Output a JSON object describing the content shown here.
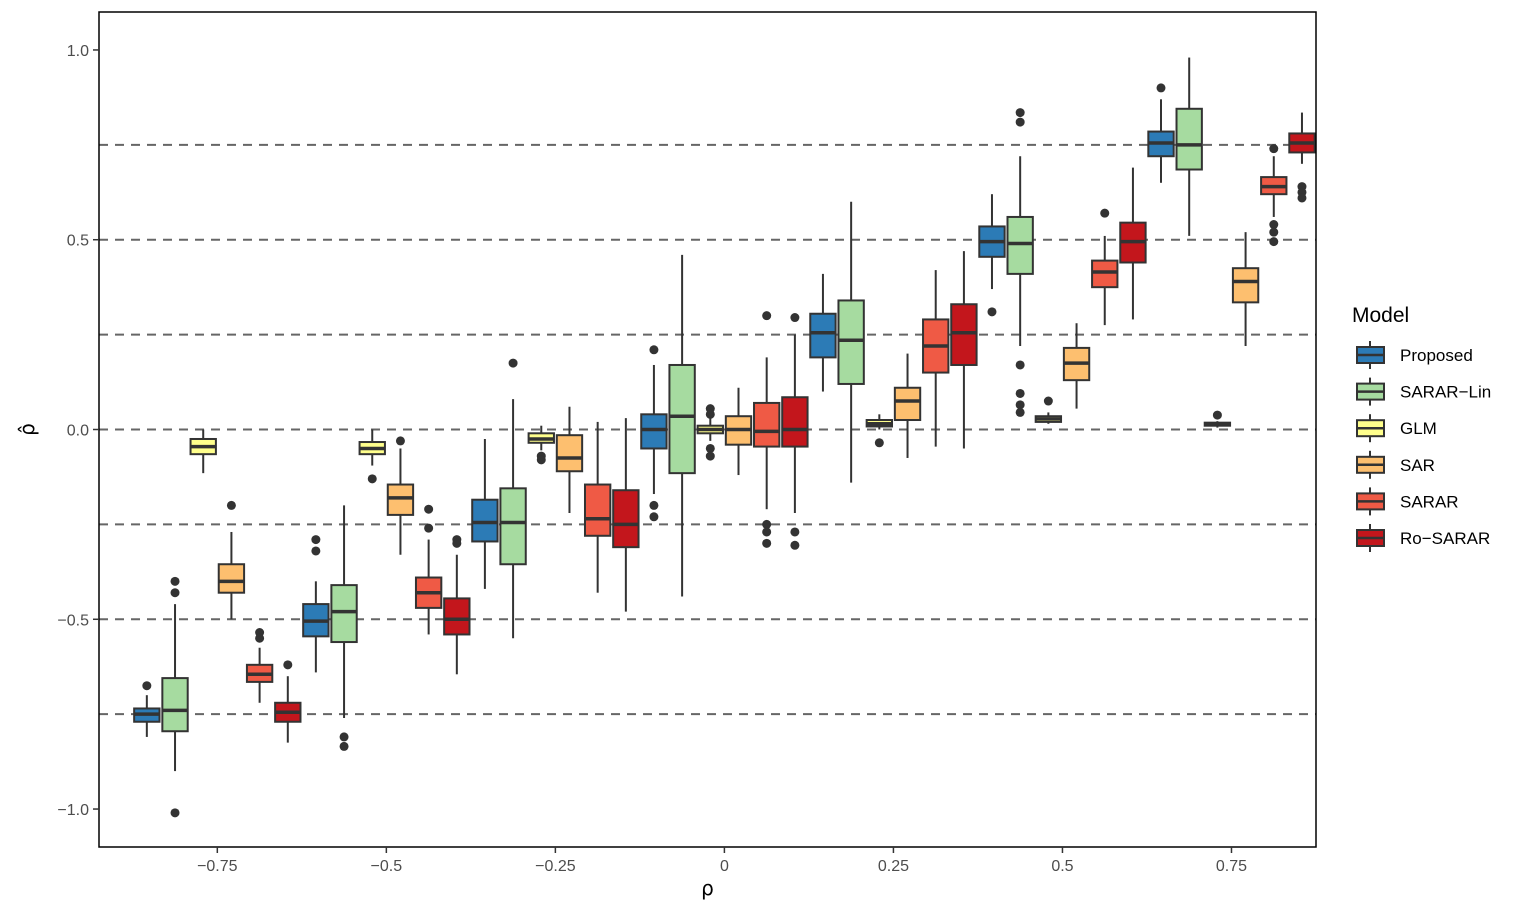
{
  "chart_data": {
    "type": "boxplot",
    "xlabel": "ρ",
    "ylabel": "ρ̂",
    "ylim": [
      -1.1,
      1.1
    ],
    "y_ticks": [
      -1.0,
      -0.5,
      0.0,
      0.5,
      1.0
    ],
    "y_tick_labels": [
      "-1.0",
      "-0.5",
      "0.0",
      "0.5",
      "1.0"
    ],
    "x_ticks": [
      -0.75,
      -0.5,
      -0.25,
      0,
      0.25,
      0.5,
      0.75
    ],
    "x_tick_labels": [
      "-0.75",
      "-0.5",
      "-0.25",
      "0",
      "0.25",
      "0.5",
      "0.75"
    ],
    "reference_lines": [
      -0.75,
      -0.5,
      -0.25,
      0.0,
      0.25,
      0.5,
      0.75
    ],
    "grid": false,
    "legend": {
      "title": "Model",
      "position": "right"
    },
    "series": [
      {
        "name": "Proposed",
        "color": "#2c7bb6",
        "boxes": [
          {
            "x": -0.75,
            "min": -0.81,
            "q1": -0.77,
            "median": -0.75,
            "q3": -0.735,
            "max": -0.7,
            "outliers": [
              -0.675
            ]
          },
          {
            "x": -0.5,
            "min": -0.64,
            "q1": -0.545,
            "median": -0.505,
            "q3": -0.46,
            "max": -0.4,
            "outliers": [
              -0.29,
              -0.32
            ]
          },
          {
            "x": -0.25,
            "min": -0.42,
            "q1": -0.295,
            "median": -0.245,
            "q3": -0.185,
            "max": -0.025,
            "outliers": []
          },
          {
            "x": 0,
            "min": -0.17,
            "q1": -0.05,
            "median": 0.0,
            "q3": 0.04,
            "max": 0.17,
            "outliers": [
              0.21,
              -0.2,
              -0.23
            ]
          },
          {
            "x": 0.25,
            "min": 0.1,
            "q1": 0.19,
            "median": 0.255,
            "q3": 0.305,
            "max": 0.41,
            "outliers": []
          },
          {
            "x": 0.5,
            "min": 0.37,
            "q1": 0.455,
            "median": 0.495,
            "q3": 0.535,
            "max": 0.62,
            "outliers": [
              0.31
            ]
          },
          {
            "x": 0.75,
            "min": 0.65,
            "q1": 0.72,
            "median": 0.755,
            "q3": 0.785,
            "max": 0.87,
            "outliers": [
              0.9
            ]
          }
        ]
      },
      {
        "name": "SARAR−Lin",
        "color": "#a6dba0",
        "boxes": [
          {
            "x": -0.75,
            "min": -0.9,
            "q1": -0.795,
            "median": -0.74,
            "q3": -0.655,
            "max": -0.46,
            "outliers": [
              -0.4,
              -0.43,
              -1.01
            ]
          },
          {
            "x": -0.5,
            "min": -0.76,
            "q1": -0.56,
            "median": -0.48,
            "q3": -0.41,
            "max": -0.2,
            "outliers": [
              -0.81,
              -0.835
            ]
          },
          {
            "x": -0.25,
            "min": -0.55,
            "q1": -0.355,
            "median": -0.245,
            "q3": -0.155,
            "max": 0.08,
            "outliers": [
              0.175
            ]
          },
          {
            "x": 0,
            "min": -0.44,
            "q1": -0.115,
            "median": 0.035,
            "q3": 0.17,
            "max": 0.46,
            "outliers": []
          },
          {
            "x": 0.25,
            "min": -0.14,
            "q1": 0.12,
            "median": 0.235,
            "q3": 0.34,
            "max": 0.6,
            "outliers": []
          },
          {
            "x": 0.5,
            "min": 0.22,
            "q1": 0.41,
            "median": 0.49,
            "q3": 0.56,
            "max": 0.72,
            "outliers": [
              0.835,
              0.81,
              0.17,
              0.095,
              0.065,
              0.045
            ]
          },
          {
            "x": 0.75,
            "min": 0.51,
            "q1": 0.685,
            "median": 0.75,
            "q3": 0.845,
            "max": 0.98,
            "outliers": []
          }
        ]
      },
      {
        "name": "GLM",
        "color": "#ffff8c",
        "boxes": [
          {
            "x": -0.75,
            "min": -0.115,
            "q1": -0.065,
            "median": -0.045,
            "q3": -0.025,
            "max": 0.0,
            "outliers": []
          },
          {
            "x": -0.5,
            "min": -0.095,
            "q1": -0.065,
            "median": -0.05,
            "q3": -0.033,
            "max": 0.0,
            "outliers": [
              -0.13
            ]
          },
          {
            "x": -0.25,
            "min": -0.055,
            "q1": -0.035,
            "median": -0.025,
            "q3": -0.01,
            "max": 0.01,
            "outliers": [
              -0.07,
              -0.08
            ]
          },
          {
            "x": 0,
            "min": -0.03,
            "q1": -0.01,
            "median": 0.0,
            "q3": 0.01,
            "max": 0.03,
            "outliers": [
              0.055,
              0.04,
              -0.05,
              -0.07
            ]
          },
          {
            "x": 0.25,
            "min": 0.0,
            "q1": 0.008,
            "median": 0.015,
            "q3": 0.025,
            "max": 0.04,
            "outliers": [
              -0.035
            ]
          },
          {
            "x": 0.5,
            "min": 0.015,
            "q1": 0.02,
            "median": 0.028,
            "q3": 0.035,
            "max": 0.045,
            "outliers": [
              0.075
            ]
          },
          {
            "x": 0.75,
            "min": 0.005,
            "q1": 0.01,
            "median": 0.014,
            "q3": 0.018,
            "max": 0.022,
            "outliers": [
              0.038
            ]
          }
        ]
      },
      {
        "name": "SAR",
        "color": "#fdbf6f",
        "boxes": [
          {
            "x": -0.75,
            "min": -0.5,
            "q1": -0.43,
            "median": -0.4,
            "q3": -0.355,
            "max": -0.27,
            "outliers": [
              -0.2
            ]
          },
          {
            "x": -0.5,
            "min": -0.33,
            "q1": -0.225,
            "median": -0.18,
            "q3": -0.145,
            "max": -0.05,
            "outliers": [
              -0.03
            ]
          },
          {
            "x": -0.25,
            "min": -0.22,
            "q1": -0.11,
            "median": -0.075,
            "q3": -0.015,
            "max": 0.06,
            "outliers": []
          },
          {
            "x": 0,
            "min": -0.12,
            "q1": -0.04,
            "median": 0.0,
            "q3": 0.035,
            "max": 0.11,
            "outliers": []
          },
          {
            "x": 0.25,
            "min": -0.075,
            "q1": 0.025,
            "median": 0.075,
            "q3": 0.11,
            "max": 0.2,
            "outliers": []
          },
          {
            "x": 0.5,
            "min": 0.055,
            "q1": 0.13,
            "median": 0.175,
            "q3": 0.215,
            "max": 0.28,
            "outliers": []
          },
          {
            "x": 0.75,
            "min": 0.22,
            "q1": 0.335,
            "median": 0.39,
            "q3": 0.425,
            "max": 0.52,
            "outliers": []
          }
        ]
      },
      {
        "name": "SARAR",
        "color": "#ef5a45",
        "boxes": [
          {
            "x": -0.75,
            "min": -0.72,
            "q1": -0.665,
            "median": -0.645,
            "q3": -0.62,
            "max": -0.575,
            "outliers": [
              -0.535,
              -0.55
            ]
          },
          {
            "x": -0.5,
            "min": -0.54,
            "q1": -0.47,
            "median": -0.43,
            "q3": -0.39,
            "max": -0.29,
            "outliers": [
              -0.21,
              -0.26
            ]
          },
          {
            "x": -0.25,
            "min": -0.43,
            "q1": -0.28,
            "median": -0.235,
            "q3": -0.145,
            "max": 0.02,
            "outliers": []
          },
          {
            "x": 0,
            "min": -0.21,
            "q1": -0.045,
            "median": -0.005,
            "q3": 0.07,
            "max": 0.19,
            "outliers": [
              0.3,
              -0.25,
              -0.27,
              -0.3
            ]
          },
          {
            "x": 0.25,
            "min": -0.045,
            "q1": 0.15,
            "median": 0.22,
            "q3": 0.29,
            "max": 0.42,
            "outliers": []
          },
          {
            "x": 0.5,
            "min": 0.275,
            "q1": 0.375,
            "median": 0.415,
            "q3": 0.445,
            "max": 0.51,
            "outliers": [
              0.57
            ]
          },
          {
            "x": 0.75,
            "min": 0.56,
            "q1": 0.62,
            "median": 0.64,
            "q3": 0.665,
            "max": 0.72,
            "outliers": [
              0.74,
              0.54,
              0.52,
              0.495
            ]
          }
        ]
      },
      {
        "name": "Ro−SARAR",
        "color": "#c3161c",
        "boxes": [
          {
            "x": -0.75,
            "min": -0.825,
            "q1": -0.77,
            "median": -0.745,
            "q3": -0.72,
            "max": -0.65,
            "outliers": [
              -0.62
            ]
          },
          {
            "x": -0.5,
            "min": -0.645,
            "q1": -0.54,
            "median": -0.5,
            "q3": -0.445,
            "max": -0.33,
            "outliers": [
              -0.29,
              -0.3
            ]
          },
          {
            "x": -0.25,
            "min": -0.48,
            "q1": -0.31,
            "median": -0.25,
            "q3": -0.16,
            "max": 0.03,
            "outliers": []
          },
          {
            "x": 0,
            "min": -0.22,
            "q1": -0.045,
            "median": 0.0,
            "q3": 0.085,
            "max": 0.25,
            "outliers": [
              0.295,
              -0.27,
              -0.305
            ]
          },
          {
            "x": 0.25,
            "min": -0.05,
            "q1": 0.17,
            "median": 0.255,
            "q3": 0.33,
            "max": 0.47,
            "outliers": []
          },
          {
            "x": 0.5,
            "min": 0.29,
            "q1": 0.44,
            "median": 0.495,
            "q3": 0.545,
            "max": 0.69,
            "outliers": []
          },
          {
            "x": 0.75,
            "min": 0.7,
            "q1": 0.73,
            "median": 0.755,
            "q3": 0.78,
            "max": 0.835,
            "outliers": [
              0.64,
              0.625,
              0.61
            ]
          }
        ]
      }
    ]
  },
  "colors": {
    "reference_line": "#666666",
    "box_stroke": "#333333",
    "panel_border": "#000000"
  }
}
